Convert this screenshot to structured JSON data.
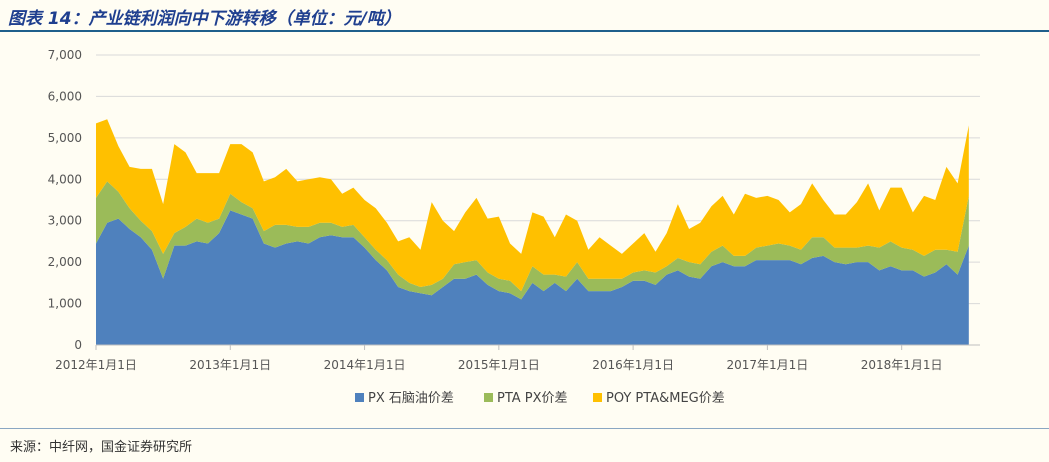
{
  "header": {
    "title": "图表 14：产业链利润向中下游转移（单位：元/吨）"
  },
  "footer": {
    "source": "来源：中纤网，国金证券研究所"
  },
  "colors": {
    "px": "#4f81bd",
    "pta": "#9bbb59",
    "poy": "#ffc000",
    "grid": "#d9d9d9",
    "axis": "#bfbfbf"
  },
  "chart_data": {
    "type": "area",
    "stacked": true,
    "title": "",
    "xlabel": "",
    "ylabel": "",
    "ylim": [
      0,
      7000
    ],
    "yticks": [
      "0",
      "1,000",
      "2,000",
      "3,000",
      "4,000",
      "5,000",
      "6,000",
      "7,000"
    ],
    "xticks": [
      "2012年1月1日",
      "2013年1月1日",
      "2014年1月1日",
      "2015年1月1日",
      "2016年1月1日",
      "2017年1月1日",
      "2018年1月1日"
    ],
    "grid": true,
    "legend": "bottom",
    "x": [
      "2012-01",
      "2012-02",
      "2012-03",
      "2012-04",
      "2012-05",
      "2012-06",
      "2012-07",
      "2012-08",
      "2012-09",
      "2012-10",
      "2012-11",
      "2012-12",
      "2013-01",
      "2013-02",
      "2013-03",
      "2013-04",
      "2013-05",
      "2013-06",
      "2013-07",
      "2013-08",
      "2013-09",
      "2013-10",
      "2013-11",
      "2013-12",
      "2014-01",
      "2014-02",
      "2014-03",
      "2014-04",
      "2014-05",
      "2014-06",
      "2014-07",
      "2014-08",
      "2014-09",
      "2014-10",
      "2014-11",
      "2014-12",
      "2015-01",
      "2015-02",
      "2015-03",
      "2015-04",
      "2015-05",
      "2015-06",
      "2015-07",
      "2015-08",
      "2015-09",
      "2015-10",
      "2015-11",
      "2015-12",
      "2016-01",
      "2016-02",
      "2016-03",
      "2016-04",
      "2016-05",
      "2016-06",
      "2016-07",
      "2016-08",
      "2016-09",
      "2016-10",
      "2016-11",
      "2016-12",
      "2017-01",
      "2017-02",
      "2017-03",
      "2017-04",
      "2017-05",
      "2017-06",
      "2017-07",
      "2017-08",
      "2017-09",
      "2017-10",
      "2017-11",
      "2017-12",
      "2018-01",
      "2018-02",
      "2018-03",
      "2018-04",
      "2018-05",
      "2018-06",
      "2018-07"
    ],
    "series": [
      {
        "name": "PX 石脑油价差",
        "values": [
          2450,
          2950,
          3050,
          2800,
          2600,
          2300,
          1600,
          2400,
          2400,
          2500,
          2450,
          2700,
          3250,
          3150,
          3050,
          2450,
          2350,
          2450,
          2500,
          2450,
          2600,
          2650,
          2600,
          2600,
          2350,
          2050,
          1800,
          1400,
          1300,
          1250,
          1200,
          1400,
          1600,
          1600,
          1700,
          1450,
          1300,
          1250,
          1100,
          1500,
          1300,
          1500,
          1300,
          1600,
          1300,
          1300,
          1300,
          1400,
          1550,
          1550,
          1450,
          1700,
          1800,
          1650,
          1600,
          1900,
          2000,
          1900,
          1900,
          2050,
          2050,
          2050,
          2050,
          1950,
          2100,
          2150,
          2000,
          1950,
          2000,
          2000,
          1800,
          1900,
          1800,
          1800,
          1650,
          1750,
          1950,
          1700,
          2400
        ]
      },
      {
        "name": "PTA PX价差",
        "values": [
          1100,
          1000,
          650,
          500,
          400,
          450,
          600,
          300,
          450,
          550,
          500,
          350,
          400,
          300,
          250,
          300,
          550,
          450,
          350,
          400,
          350,
          300,
          250,
          300,
          250,
          250,
          250,
          300,
          200,
          150,
          250,
          200,
          350,
          400,
          350,
          300,
          300,
          300,
          200,
          400,
          400,
          200,
          350,
          400,
          300,
          300,
          300,
          200,
          200,
          250,
          300,
          200,
          300,
          350,
          350,
          350,
          400,
          250,
          250,
          300,
          350,
          400,
          350,
          350,
          500,
          450,
          350,
          400,
          350,
          400,
          550,
          600,
          550,
          500,
          500,
          550,
          350,
          550,
          1200
        ]
      },
      {
        "name": "POY PTA&MEG价差",
        "values": [
          1800,
          1500,
          1100,
          1000,
          1250,
          1500,
          1200,
          2150,
          1800,
          1100,
          1200,
          1100,
          1200,
          1400,
          1350,
          1200,
          1150,
          1350,
          1100,
          1150,
          1100,
          1050,
          800,
          900,
          900,
          1000,
          900,
          800,
          1100,
          900,
          2000,
          1400,
          800,
          1200,
          1500,
          1300,
          1500,
          900,
          900,
          1300,
          1400,
          900,
          1500,
          1000,
          700,
          1000,
          800,
          600,
          700,
          900,
          500,
          800,
          1300,
          800,
          1000,
          1100,
          1200,
          1000,
          1500,
          1200,
          1200,
          1050,
          800,
          1100,
          1300,
          900,
          800,
          800,
          1100,
          1500,
          900,
          1300,
          1450,
          900,
          1450,
          1200,
          2000,
          1650,
          1700
        ]
      }
    ]
  },
  "legend": {
    "items": [
      {
        "label": "PX 石脑油价差"
      },
      {
        "label": "PTA PX价差"
      },
      {
        "label": "POY PTA&MEG价差"
      }
    ]
  }
}
